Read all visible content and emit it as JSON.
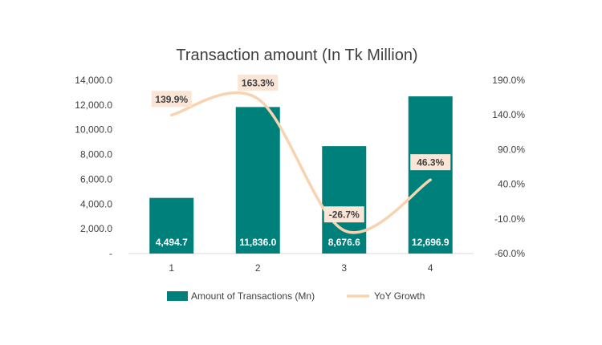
{
  "chart_data": {
    "type": "bar",
    "title": "Transaction amount (In Tk Million)",
    "categories": [
      "1",
      "2",
      "3",
      "4"
    ],
    "series": [
      {
        "name": "Amount of Transactions (Mn)",
        "type": "bar",
        "axis": "left",
        "values": [
          4494.7,
          11836.0,
          8676.6,
          12696.9
        ],
        "labels": [
          "4,494.7",
          "11,836.0",
          "8,676.6",
          "12,696.9"
        ],
        "color": "#00807a"
      },
      {
        "name": "YoY Growth",
        "type": "line",
        "axis": "right",
        "values": [
          139.9,
          163.3,
          -26.7,
          46.3
        ],
        "labels": [
          "139.9%",
          "163.3%",
          "-26.7%",
          "46.3%"
        ],
        "color": "#f8d3b0",
        "label_bg": "#fbe5d6"
      }
    ],
    "y_left": {
      "ylim": [
        0,
        14000
      ],
      "ticks": [
        0,
        2000,
        4000,
        6000,
        8000,
        10000,
        12000,
        14000
      ],
      "tick_labels": [
        "-",
        "2,000.0",
        "4,000.0",
        "6,000.0",
        "8,000.0",
        "10,000.0",
        "12,000.0",
        "14,000.0"
      ]
    },
    "y_right": {
      "ylim": [
        -60,
        190
      ],
      "ticks": [
        -60,
        -10,
        40,
        90,
        140,
        190
      ],
      "tick_labels": [
        "-60.0%",
        "-10.0%",
        "40.0%",
        "90.0%",
        "140.0%",
        "190.0%"
      ]
    },
    "grid": false,
    "legend": "bottom"
  }
}
